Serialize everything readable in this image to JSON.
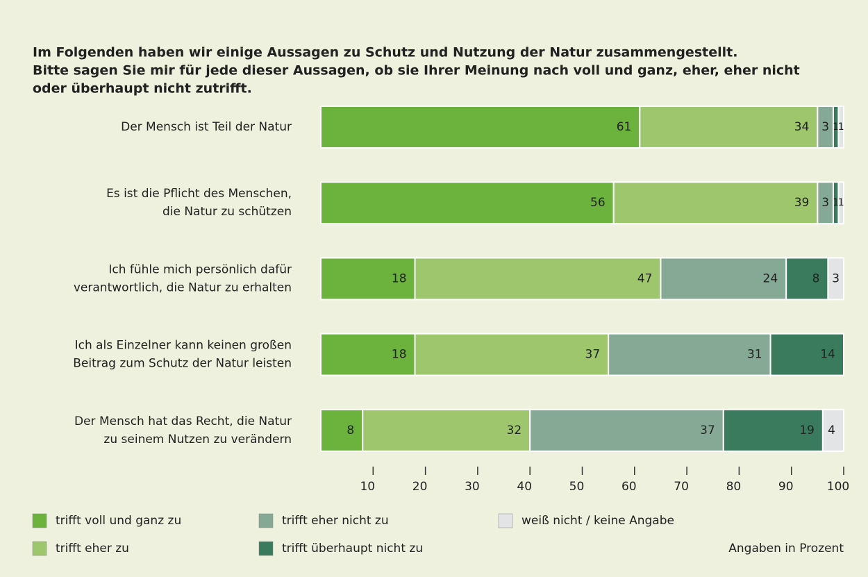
{
  "chart_data": {
    "type": "stacked_bar_horizontal",
    "title": [
      "Im Folgenden haben wir einige Aussagen zu Schutz und Nutzung der Natur zusammengestellt.",
      "Bitte sagen Sie mir für jede dieser Aussagen, ob sie Ihrer Meinung nach voll und ganz, eher, eher nicht",
      "oder überhaupt nicht zutrifft."
    ],
    "categories": [
      [
        "Der Mensch ist Teil der Natur"
      ],
      [
        "Es ist die Pflicht des Menschen,",
        "die Natur zu schützen"
      ],
      [
        "Ich fühle mich persönlich dafür",
        "verantwortlich, die Natur zu erhalten"
      ],
      [
        "Ich als Einzelner kann keinen großen",
        "Beitrag zum Schutz der Natur leisten"
      ],
      [
        "Der Mensch hat das Recht, die Natur",
        "zu seinem Nutzen zu verändern"
      ]
    ],
    "series": [
      {
        "name": "trifft voll und ganz zu",
        "color": "#6cb33e",
        "label_color": "#222222",
        "values": [
          61,
          56,
          18,
          18,
          8
        ]
      },
      {
        "name": "trifft eher zu",
        "color": "#9dc66d",
        "label_color": "#222222",
        "values": [
          34,
          39,
          47,
          37,
          32
        ]
      },
      {
        "name": "trifft eher nicht zu",
        "color": "#85a994",
        "label_color": "#ffffff",
        "values": [
          3,
          3,
          24,
          31,
          37
        ]
      },
      {
        "name": "trifft überhaupt nicht zu",
        "color": "#3b7b5d",
        "label_color": "#ffffff",
        "values": [
          1,
          1,
          8,
          14,
          19
        ]
      },
      {
        "name": "weiß nicht / keine Angabe",
        "color": "#e3e4e6",
        "label_color": "#222222",
        "values": [
          1,
          1,
          3,
          null,
          4
        ]
      }
    ],
    "xlim": [
      0,
      100
    ],
    "xticks": [
      10,
      20,
      30,
      40,
      50,
      60,
      70,
      80,
      90,
      100
    ],
    "note": "Angaben in Prozent"
  }
}
